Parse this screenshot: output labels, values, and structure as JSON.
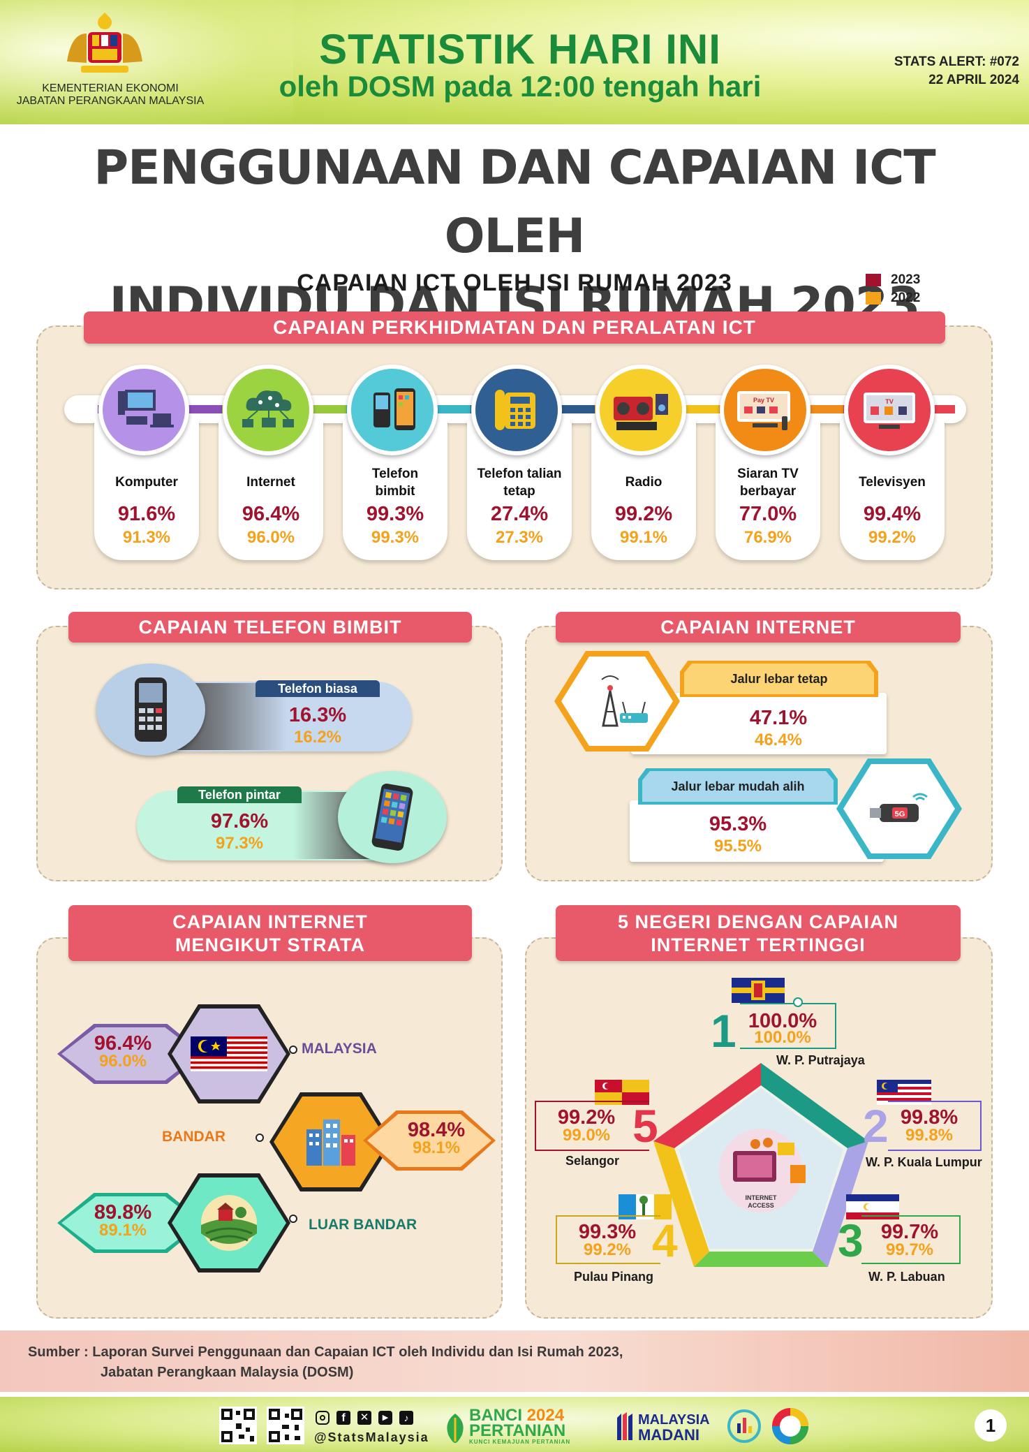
{
  "header": {
    "title": "STATISTIK HARI INI",
    "subtitle": "oleh DOSM pada 12:00 tengah hari",
    "ministry_line1": "KEMENTERIAN EKONOMI",
    "ministry_line2": "JABATAN PERANGKAAN MALAYSIA",
    "alert_id": "STATS ALERT: #072",
    "alert_date": "22 APRIL 2024"
  },
  "main_title_line1": "PENGGUNAAN DAN CAPAIAN ICT OLEH",
  "main_title_line2": "INDIVIDU DAN ISI RUMAH 2023",
  "section_title": "CAPAIAN ICT OLEH ISI RUMAH 2023",
  "legend": [
    {
      "label": "2023",
      "color": "#a0122d"
    },
    {
      "label": "2022",
      "color": "#f4a11c"
    }
  ],
  "services": {
    "banner": "CAPAIAN PERKHIDMATAN DAN PERALATAN ICT",
    "items": [
      {
        "line1": "Komputer",
        "line2": "",
        "v2023": "91.6%",
        "v2022": "91.3%",
        "icon": "computer-icon",
        "color": "#b592e8"
      },
      {
        "line1": "Internet",
        "line2": "",
        "v2023": "96.4%",
        "v2022": "96.0%",
        "icon": "cloud-network-icon",
        "color": "#9bd341"
      },
      {
        "line1": "Telefon",
        "line2": "bimbit",
        "v2023": "99.3%",
        "v2022": "99.3%",
        "icon": "mobile-phone-icon",
        "color": "#54c9d8"
      },
      {
        "line1": "Telefon talian",
        "line2": "tetap",
        "v2023": "27.4%",
        "v2022": "27.3%",
        "icon": "landline-phone-icon",
        "color": "#2f5f93"
      },
      {
        "line1": "Radio",
        "line2": "",
        "v2023": "99.2%",
        "v2022": "99.1%",
        "icon": "radio-icon",
        "color": "#f6cf2a"
      },
      {
        "line1": "Siaran TV",
        "line2": "berbayar",
        "v2023": "77.0%",
        "v2022": "76.9%",
        "icon": "pay-tv-icon",
        "color": "#f28b16"
      },
      {
        "line1": "Televisyen",
        "line2": "",
        "v2023": "99.4%",
        "v2022": "99.2%",
        "icon": "television-icon",
        "color": "#e8414f"
      }
    ],
    "pay_tv_label": "Pay TV",
    "tv_label": "TV"
  },
  "phone": {
    "banner": "CAPAIAN TELEFON BIMBIT",
    "basic": {
      "label": "Telefon biasa",
      "v2023": "16.3%",
      "v2022": "16.2%"
    },
    "smart": {
      "label": "Telefon pintar",
      "v2023": "97.6%",
      "v2022": "97.3%"
    }
  },
  "internet": {
    "banner": "CAPAIAN INTERNET",
    "fixed": {
      "label": "Jalur lebar tetap",
      "v2023": "47.1%",
      "v2022": "46.4%"
    },
    "mobile": {
      "label": "Jalur lebar mudah alih",
      "v2023": "95.3%",
      "v2022": "95.5%"
    },
    "fiveg_label": "5G"
  },
  "strata": {
    "banner_line1": "CAPAIAN INTERNET",
    "banner_line2": "MENGIKUT STRATA",
    "malaysia": {
      "label": "MALAYSIA",
      "v2023": "96.4%",
      "v2022": "96.0%"
    },
    "bandar": {
      "label": "BANDAR",
      "v2023": "98.4%",
      "v2022": "98.1%"
    },
    "luar_bandar": {
      "label": "LUAR BANDAR",
      "v2023": "89.8%",
      "v2022": "89.1%"
    }
  },
  "states": {
    "banner_line1": "5 NEGERI DENGAN CAPAIAN",
    "banner_line2": "INTERNET TERTINGGI",
    "center_label_line1": "INTERNET",
    "center_label_line2": "ACCESS",
    "items": [
      {
        "rank": "1",
        "name": "W. P. Putrajaya",
        "v2023": "100.0%",
        "v2022": "100.0%"
      },
      {
        "rank": "2",
        "name": "W. P. Kuala Lumpur",
        "v2023": "99.8%",
        "v2022": "99.8%"
      },
      {
        "rank": "3",
        "name": "W. P. Labuan",
        "v2023": "99.7%",
        "v2022": "99.7%"
      },
      {
        "rank": "4",
        "name": "Pulau Pinang",
        "v2023": "99.3%",
        "v2022": "99.2%"
      },
      {
        "rank": "5",
        "name": "Selangor",
        "v2023": "99.2%",
        "v2022": "99.0%"
      }
    ]
  },
  "source": {
    "line1": "Sumber : Laporan Survei Penggunaan dan Capaian ICT oleh Individu dan Isi Rumah 2023,",
    "line2": "Jabatan Perangkaan Malaysia (DOSM)"
  },
  "footer": {
    "handle": "@StatsMalaysia",
    "banci_line1": "BANCI",
    "banci_year": "2024",
    "banci_line2": "PERTANIAN",
    "banci_tagline": "KUNCI KEMAJUAN PERTANIAN",
    "madani_line1": "MALAYSIA",
    "madani_line2": "MADANI",
    "page_number": "1"
  }
}
